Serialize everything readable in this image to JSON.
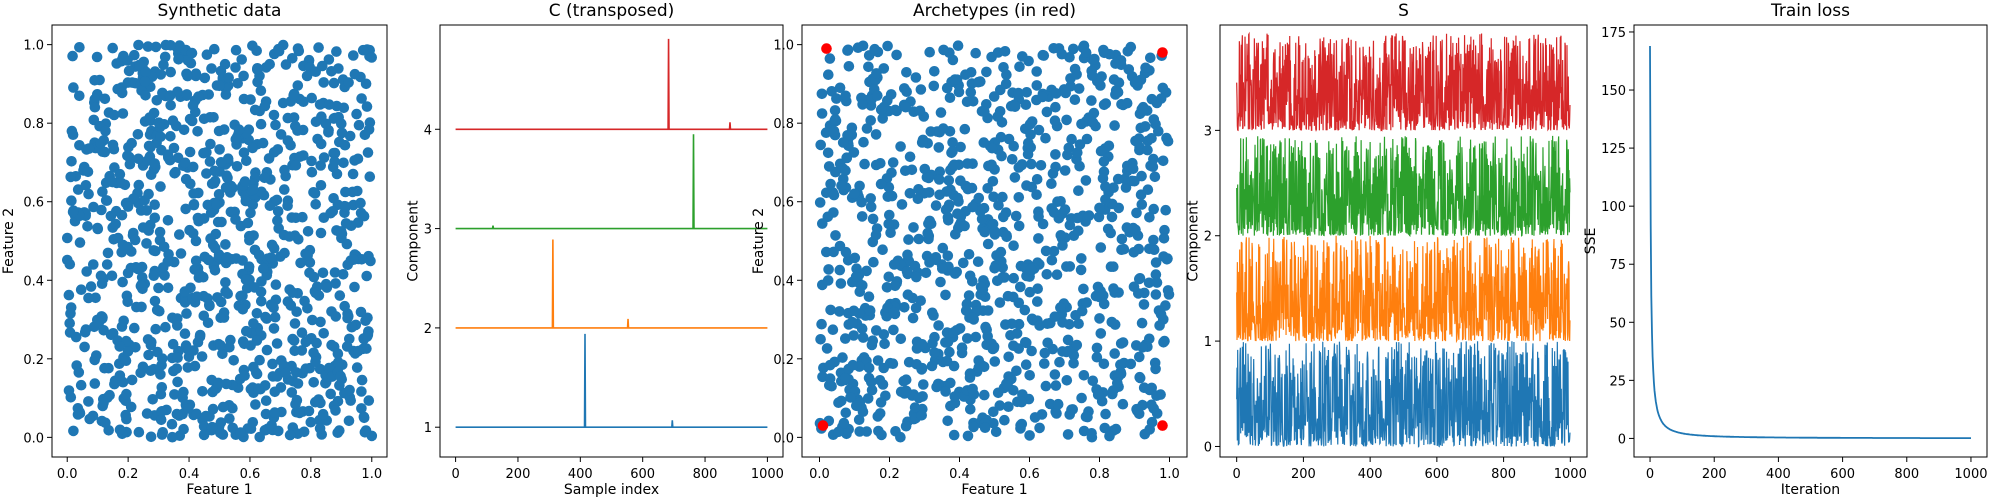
{
  "chart_data": [
    {
      "type": "scatter",
      "title": "Synthetic data",
      "xlabel": "Feature 1",
      "ylabel": "Feature 2",
      "xlim": [
        -0.05,
        1.05
      ],
      "ylim": [
        -0.05,
        1.05
      ],
      "xticks": [
        "0.0",
        "0.2",
        "0.4",
        "0.6",
        "0.8",
        "1.0"
      ],
      "yticks": [
        "0.0",
        "0.2",
        "0.4",
        "0.6",
        "0.8",
        "1.0"
      ],
      "series": [
        {
          "color": "#1f77b4",
          "n_points": 1000,
          "distribution": "uniform",
          "range_x": [
            0,
            1
          ],
          "range_y": [
            0,
            1
          ]
        }
      ],
      "grid": false
    },
    {
      "type": "line",
      "title": "C (transposed)",
      "xlabel": "Sample index",
      "ylabel": "Component",
      "xlim": [
        -50,
        1050
      ],
      "ylim": [
        0.7,
        5.05
      ],
      "xticks": [
        "0",
        "200",
        "400",
        "600",
        "800",
        "1000"
      ],
      "yticks": [
        "1",
        "2",
        "3",
        "4"
      ],
      "series": [
        {
          "component": 1,
          "color": "#1f77b4",
          "baseline": 1,
          "spikes": [
            {
              "x": 415,
              "y": 1.94
            },
            {
              "x": 695,
              "y": 1.07
            }
          ]
        },
        {
          "component": 2,
          "color": "#ff7f0e",
          "baseline": 2,
          "spikes": [
            {
              "x": 312,
              "y": 2.89
            },
            {
              "x": 553,
              "y": 2.09
            }
          ]
        },
        {
          "component": 3,
          "color": "#2ca02c",
          "baseline": 3,
          "spikes": [
            {
              "x": 763,
              "y": 3.95
            },
            {
              "x": 120,
              "y": 3.03
            }
          ]
        },
        {
          "component": 4,
          "color": "#d62728",
          "baseline": 4,
          "spikes": [
            {
              "x": 683,
              "y": 4.91
            },
            {
              "x": 880,
              "y": 4.07
            }
          ]
        }
      ],
      "grid": false
    },
    {
      "type": "scatter",
      "title": "Archetypes (in red)",
      "xlabel": "Feature 1",
      "ylabel": "Feature 2",
      "xlim": [
        -0.05,
        1.05
      ],
      "ylim": [
        -0.05,
        1.05
      ],
      "xticks": [
        "0.0",
        "0.2",
        "0.4",
        "0.6",
        "0.8",
        "1.0"
      ],
      "yticks": [
        "0.0",
        "0.2",
        "0.4",
        "0.6",
        "0.8",
        "1.0"
      ],
      "series": [
        {
          "color": "#1f77b4",
          "n_points": 1000,
          "distribution": "uniform",
          "range_x": [
            0,
            1
          ],
          "range_y": [
            0,
            1
          ]
        },
        {
          "color": "#ff0000",
          "points": [
            [
              0.02,
              0.99
            ],
            [
              0.98,
              0.98
            ],
            [
              0.01,
              0.03
            ],
            [
              0.98,
              0.03
            ]
          ]
        }
      ],
      "grid": false
    },
    {
      "type": "line",
      "title": "S",
      "xlabel": "",
      "ylabel": "Component",
      "xlim": [
        -50,
        1050
      ],
      "ylim": [
        -0.1,
        4.0
      ],
      "xticks": [
        "0",
        "200",
        "400",
        "600",
        "800",
        "1000"
      ],
      "yticks": [
        "0",
        "1",
        "2",
        "3"
      ],
      "series": [
        {
          "component": 0,
          "color": "#1f77b4",
          "baseline": 0.0,
          "amplitude": 1.0,
          "n": 1000
        },
        {
          "component": 1,
          "color": "#ff7f0e",
          "baseline": 1.0,
          "amplitude": 1.0,
          "n": 1000
        },
        {
          "component": 2,
          "color": "#2ca02c",
          "baseline": 2.0,
          "amplitude": 0.95,
          "n": 1000
        },
        {
          "component": 3,
          "color": "#d62728",
          "baseline": 3.0,
          "amplitude": 0.92,
          "n": 1000
        }
      ],
      "grid": false
    },
    {
      "type": "line",
      "title": "Train loss",
      "xlabel": "Iteration",
      "ylabel": "SSE",
      "xlim": [
        -50,
        1050
      ],
      "ylim": [
        -8,
        178
      ],
      "xticks": [
        "0",
        "200",
        "400",
        "600",
        "800",
        "1000"
      ],
      "yticks": [
        "0",
        "25",
        "50",
        "75",
        "100",
        "125",
        "150",
        "175"
      ],
      "series": [
        {
          "color": "#1f77b4",
          "x": [
            0,
            5,
            10,
            15,
            20,
            30,
            40,
            50,
            60,
            80,
            100,
            150,
            200,
            300,
            400,
            600,
            800,
            1000
          ],
          "y": [
            169,
            110,
            70,
            46,
            32,
            18,
            12,
            9,
            7,
            5,
            3.5,
            2,
            1.3,
            0.7,
            0.4,
            0.2,
            0.1,
            0.05
          ]
        }
      ],
      "grid": false
    }
  ]
}
